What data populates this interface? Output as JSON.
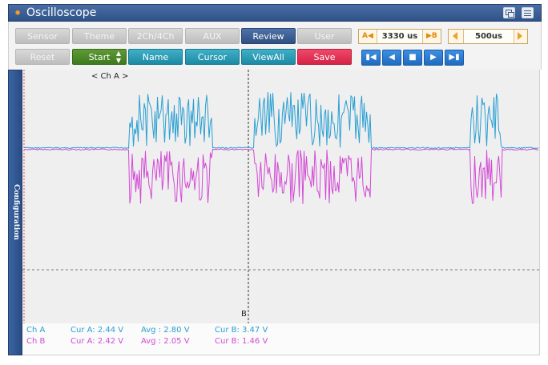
{
  "app": {
    "title": "Oscilloscope"
  },
  "toolbar": {
    "row1": [
      {
        "label": "Sensor",
        "style": "gray"
      },
      {
        "label": "Theme",
        "style": "gray"
      },
      {
        "label": "2Ch/4Ch",
        "style": "gray"
      },
      {
        "label": "AUX",
        "style": "gray"
      },
      {
        "label": "Review",
        "style": "navy"
      },
      {
        "label": "User Setting",
        "style": "gray"
      }
    ],
    "row2": [
      {
        "label": "Reset",
        "style": "gray"
      },
      {
        "label": "Start",
        "style": "green"
      },
      {
        "label": "Name",
        "style": "teal"
      },
      {
        "label": "Cursor",
        "style": "teal"
      },
      {
        "label": "ViewAll",
        "style": "teal"
      },
      {
        "label": "Save",
        "style": "red"
      }
    ],
    "cursor_span": {
      "left_label": "A",
      "value": "3330 us",
      "right_label": "B"
    },
    "timebase": {
      "value": "500us"
    },
    "spinner_up": "▲",
    "spinner_down": "▼"
  },
  "playback": [
    "skip-to-start-icon",
    "step-back-icon",
    "stop-icon",
    "step-forward-icon",
    "skip-to-end-icon"
  ],
  "side_panel": {
    "label": "Configuration"
  },
  "plot": {
    "channel_marker": "< Ch A >",
    "cursor_b_label": "B"
  },
  "readout": {
    "rows": [
      {
        "channel": "Ch A",
        "cur_a": "Cur A: 2.44 V",
        "avg": "Avg  : 2.80 V",
        "cur_b": "Cur B: 3.47 V"
      },
      {
        "channel": "Ch B",
        "cur_a": "Cur A: 2.42 V",
        "avg": "Avg  : 2.05 V",
        "cur_b": "Cur B: 1.46 V"
      }
    ]
  },
  "colors": {
    "ch_a": "#2a9fd1",
    "ch_b": "#d24ad4",
    "title_bar": "#3a5f96"
  }
}
